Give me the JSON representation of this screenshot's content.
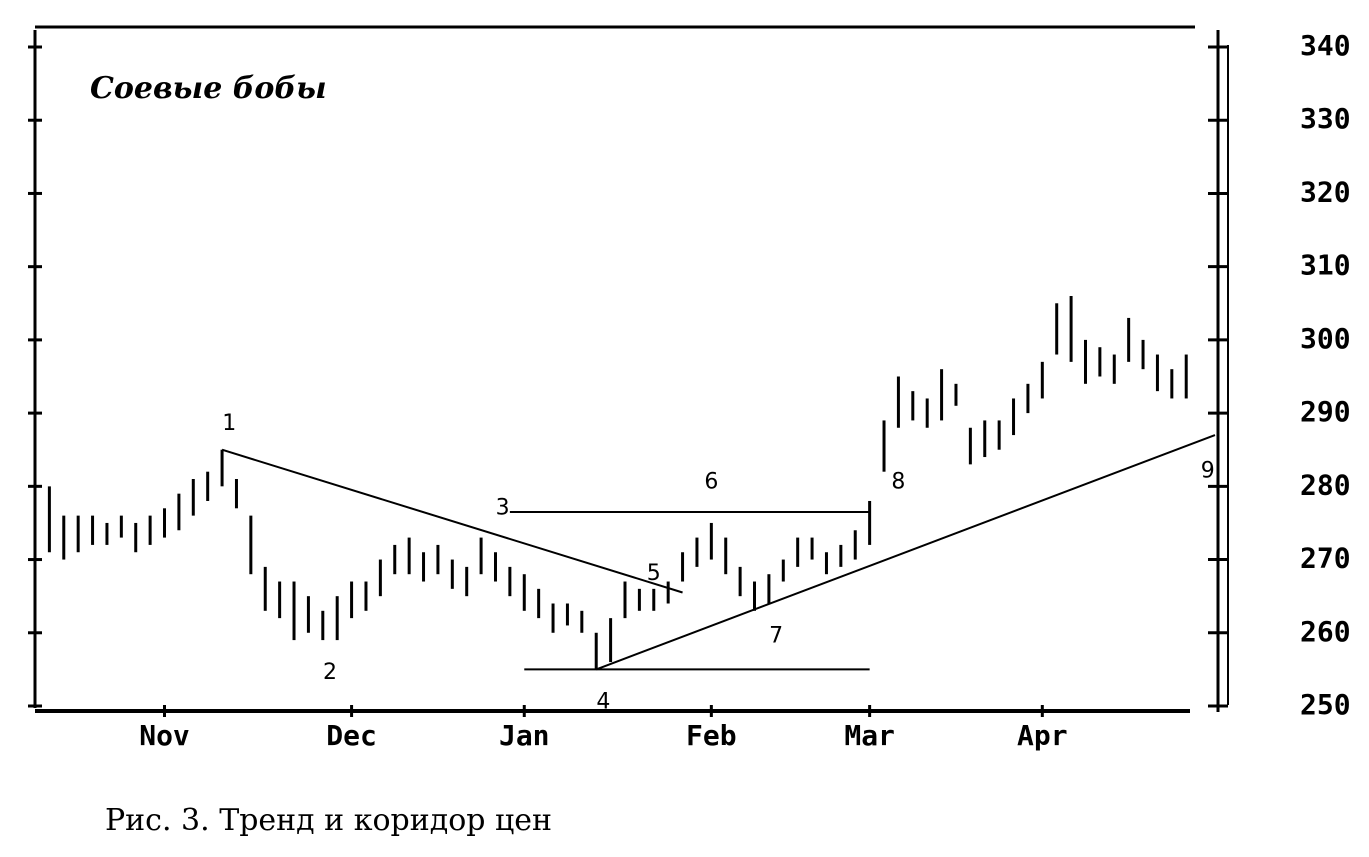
{
  "chart_data": {
    "type": "ohlc",
    "title": "Соевые бобы",
    "caption": "Рис. 3. Тренд и коридор цен",
    "color": "#000000",
    "low": [
      271,
      270,
      271,
      272,
      272,
      273,
      271,
      272,
      273,
      274,
      276,
      278,
      280,
      277,
      268,
      263,
      262,
      259,
      260,
      259,
      259,
      262,
      263,
      265,
      268,
      268,
      267,
      268,
      266,
      265,
      268,
      267,
      265,
      263,
      262,
      260,
      261,
      260,
      255,
      256,
      262,
      263,
      263,
      264,
      267,
      269,
      270,
      268,
      265,
      263,
      264,
      267,
      269,
      270,
      268,
      269,
      270,
      272,
      282,
      288,
      289,
      288,
      289,
      291,
      283,
      284,
      285,
      287,
      290,
      292,
      298,
      297,
      294,
      295,
      294,
      297,
      296,
      293,
      292,
      292
    ],
    "high": [
      280,
      276,
      276,
      276,
      275,
      276,
      275,
      276,
      277,
      279,
      281,
      282,
      285,
      281,
      276,
      269,
      267,
      267,
      265,
      263,
      265,
      267,
      267,
      270,
      272,
      273,
      271,
      272,
      270,
      269,
      273,
      271,
      269,
      268,
      266,
      264,
      264,
      263,
      260,
      262,
      267,
      266,
      266,
      267,
      271,
      273,
      275,
      273,
      269,
      267,
      268,
      270,
      273,
      273,
      271,
      272,
      274,
      278,
      289,
      295,
      293,
      292,
      296,
      294,
      288,
      289,
      289,
      292,
      294,
      297,
      305,
      306,
      300,
      299,
      298,
      303,
      300,
      298,
      296,
      298
    ],
    "xlim": [
      -1,
      81
    ],
    "xticks": [
      {
        "value": 8,
        "label": "Nov"
      },
      {
        "value": 21,
        "label": "Dec"
      },
      {
        "value": 33,
        "label": "Jan"
      },
      {
        "value": 46,
        "label": "Feb"
      },
      {
        "value": 57,
        "label": "Mar"
      },
      {
        "value": 69,
        "label": "Apr"
      }
    ],
    "ylim": [
      250,
      340
    ],
    "yticks": [
      {
        "value": 250,
        "label": "250"
      },
      {
        "value": 260,
        "label": "260"
      },
      {
        "value": 270,
        "label": "270"
      },
      {
        "value": 280,
        "label": "280"
      },
      {
        "value": 290,
        "label": "290"
      },
      {
        "value": 300,
        "label": "300"
      },
      {
        "value": 310,
        "label": "310"
      },
      {
        "value": 320,
        "label": "320"
      },
      {
        "value": 330,
        "label": "330"
      },
      {
        "value": 340,
        "label": "340"
      }
    ],
    "lines": [
      {
        "x": [
          12,
          44
        ],
        "y": [
          285,
          265.5
        ]
      },
      {
        "x": [
          32,
          57
        ],
        "y": [
          276.5,
          276.5
        ]
      },
      {
        "x": [
          33,
          57
        ],
        "y": [
          255,
          255
        ]
      },
      {
        "x": [
          38,
          81
        ],
        "y": [
          255,
          287
        ]
      }
    ],
    "annotations": [
      {
        "text": "1",
        "x": 12.5,
        "y": 288.5
      },
      {
        "text": "2",
        "x": 19.5,
        "y": 254.5
      },
      {
        "text": "3",
        "x": 31.5,
        "y": 277
      },
      {
        "text": "4",
        "x": 38.5,
        "y": 250.5
      },
      {
        "text": "5",
        "x": 42,
        "y": 268
      },
      {
        "text": "6",
        "x": 46,
        "y": 280.5
      },
      {
        "text": "7",
        "x": 50.5,
        "y": 259.5
      },
      {
        "text": "8",
        "x": 59,
        "y": 280.5
      },
      {
        "text": "9",
        "x": 80.5,
        "y": 282
      }
    ]
  }
}
